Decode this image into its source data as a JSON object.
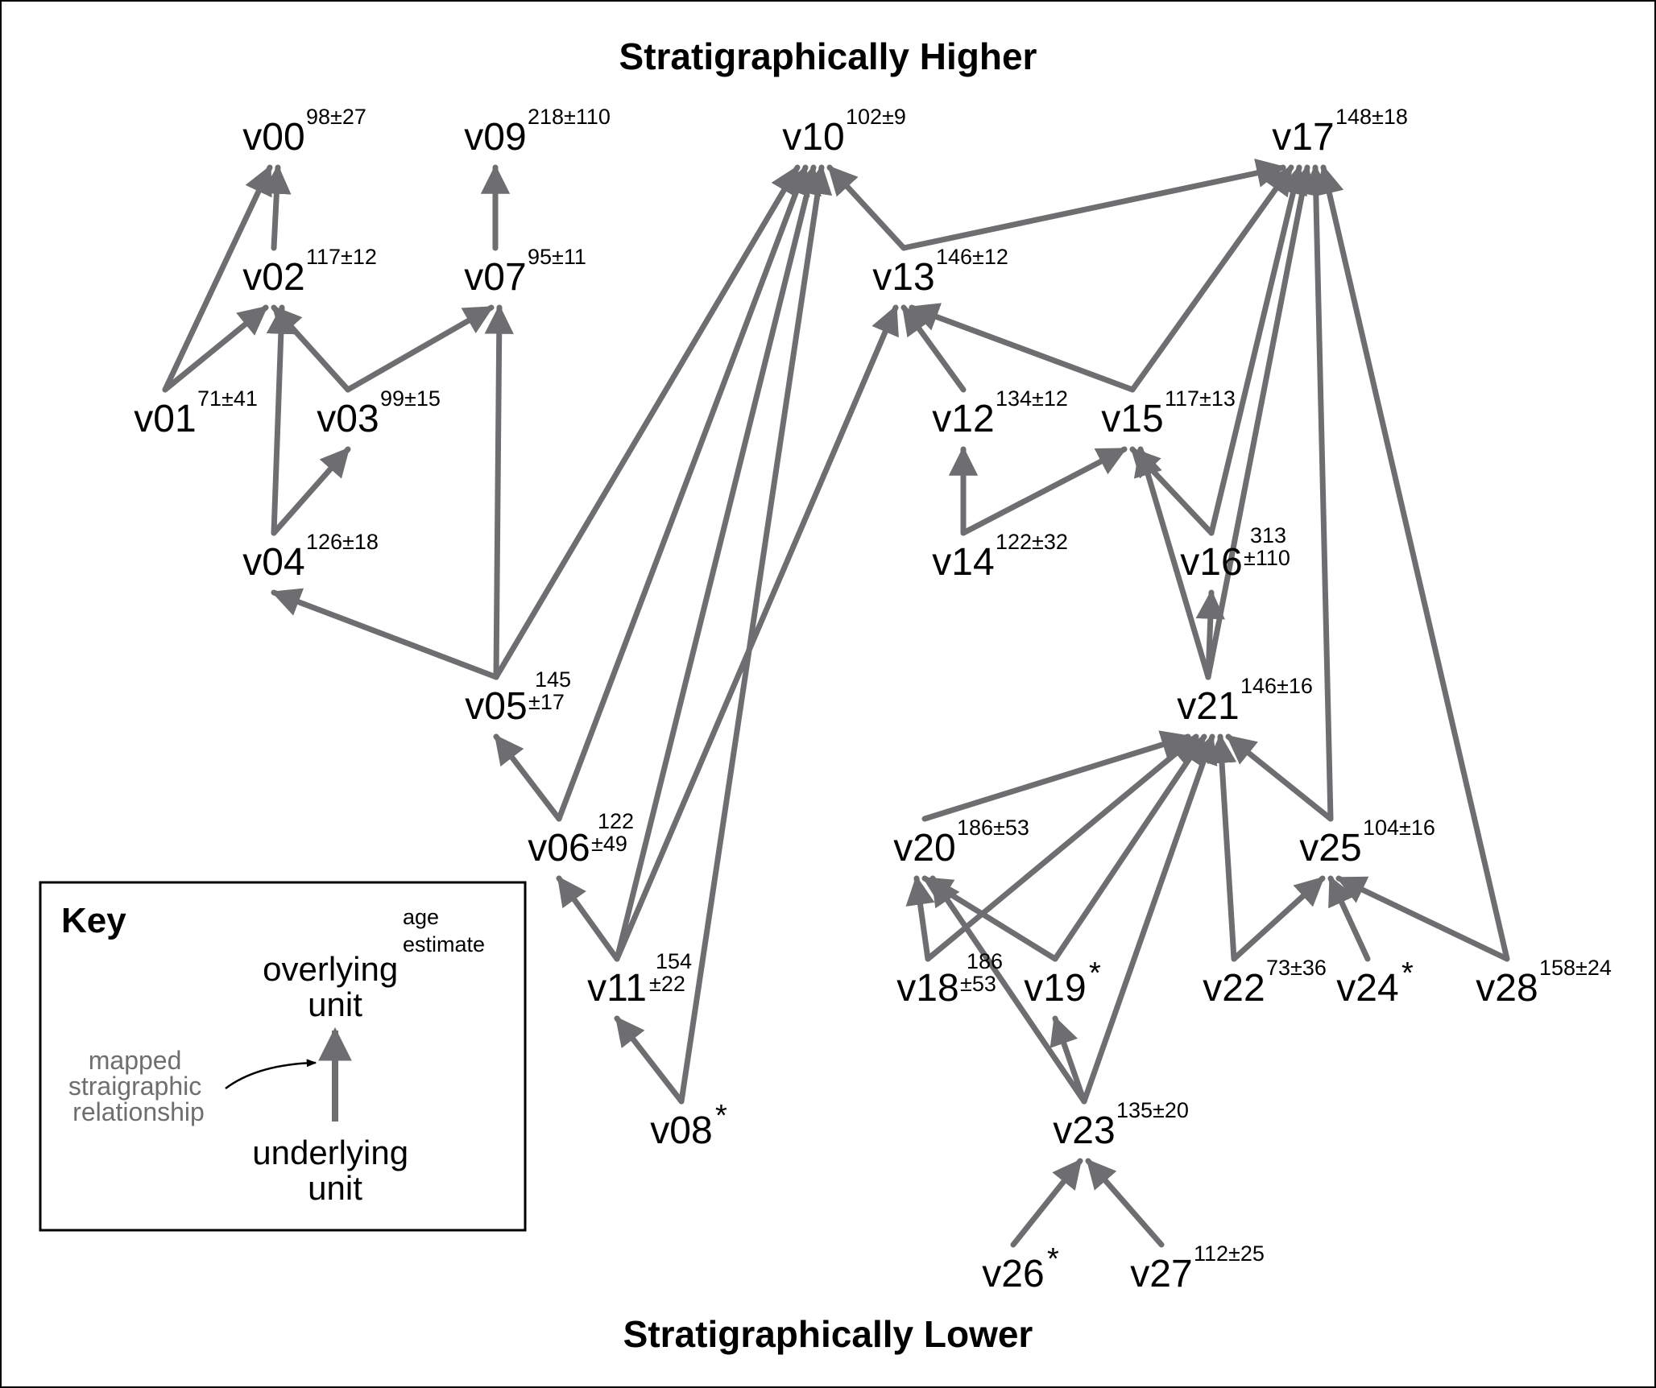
{
  "headings": {
    "top": "Stratigraphically Higher",
    "bottom": "Stratigraphically Lower"
  },
  "colors": {
    "arrow": "#6e6e70",
    "text": "#000000",
    "frame": "#000000"
  },
  "nodes": [
    {
      "id": "v00",
      "label": "v00",
      "age": [
        "98±27"
      ]
    },
    {
      "id": "v09",
      "label": "v09",
      "age": [
        "218±110"
      ]
    },
    {
      "id": "v10",
      "label": "v10",
      "age": [
        "102±9"
      ]
    },
    {
      "id": "v17",
      "label": "v17",
      "age": [
        "148±18"
      ]
    },
    {
      "id": "v02",
      "label": "v02",
      "age": [
        "117±12"
      ]
    },
    {
      "id": "v07",
      "label": "v07",
      "age": [
        "95±11"
      ]
    },
    {
      "id": "v13",
      "label": "v13",
      "age": [
        "146±12"
      ]
    },
    {
      "id": "v01",
      "label": "v01",
      "age": [
        "71±41"
      ]
    },
    {
      "id": "v03",
      "label": "v03",
      "age": [
        "99±15"
      ]
    },
    {
      "id": "v12",
      "label": "v12",
      "age": [
        "134±12"
      ]
    },
    {
      "id": "v15",
      "label": "v15",
      "age": [
        "117±13"
      ]
    },
    {
      "id": "v04",
      "label": "v04",
      "age": [
        "126±18"
      ]
    },
    {
      "id": "v14",
      "label": "v14",
      "age": [
        "122±32"
      ]
    },
    {
      "id": "v16",
      "label": "v16",
      "age": [
        "313",
        "±110"
      ]
    },
    {
      "id": "v05",
      "label": "v05",
      "age": [
        "145",
        "±17"
      ]
    },
    {
      "id": "v21",
      "label": "v21",
      "age": [
        "146±16"
      ]
    },
    {
      "id": "v06",
      "label": "v06",
      "age": [
        "122",
        "±49"
      ]
    },
    {
      "id": "v20",
      "label": "v20",
      "age": [
        "186±53"
      ]
    },
    {
      "id": "v25",
      "label": "v25",
      "age": [
        "104±16"
      ]
    },
    {
      "id": "v11",
      "label": "v11",
      "age": [
        "154",
        "±22"
      ]
    },
    {
      "id": "v18",
      "label": "v18",
      "age": [
        "186",
        "±53"
      ]
    },
    {
      "id": "v19",
      "label": "v19",
      "age": [],
      "star": "*"
    },
    {
      "id": "v22",
      "label": "v22",
      "age": [
        "73±36"
      ]
    },
    {
      "id": "v24",
      "label": "v24",
      "age": [],
      "star": "*"
    },
    {
      "id": "v28",
      "label": "v28",
      "age": [
        "158±24"
      ]
    },
    {
      "id": "v08",
      "label": "v08",
      "age": [],
      "star": "*"
    },
    {
      "id": "v23",
      "label": "v23",
      "age": [
        "135±20"
      ]
    },
    {
      "id": "v26",
      "label": "v26",
      "age": [],
      "star": "*"
    },
    {
      "id": "v27",
      "label": "v27",
      "age": [
        "112±25"
      ]
    }
  ],
  "edges": [
    {
      "from": "v01",
      "to": "v00"
    },
    {
      "from": "v02",
      "to": "v00"
    },
    {
      "from": "v01",
      "to": "v02"
    },
    {
      "from": "v03",
      "to": "v02"
    },
    {
      "from": "v04",
      "to": "v02"
    },
    {
      "from": "v04",
      "to": "v03"
    },
    {
      "from": "v03",
      "to": "v07"
    },
    {
      "from": "v07",
      "to": "v09"
    },
    {
      "from": "v05",
      "to": "v07"
    },
    {
      "from": "v05",
      "to": "v04"
    },
    {
      "from": "v05",
      "to": "v10"
    },
    {
      "from": "v06",
      "to": "v05"
    },
    {
      "from": "v06",
      "to": "v10"
    },
    {
      "from": "v11",
      "to": "v06"
    },
    {
      "from": "v11",
      "to": "v10"
    },
    {
      "from": "v11",
      "to": "v13"
    },
    {
      "from": "v08",
      "to": "v11"
    },
    {
      "from": "v08",
      "to": "v10"
    },
    {
      "from": "v13",
      "to": "v10"
    },
    {
      "from": "v13",
      "to": "v17"
    },
    {
      "from": "v12",
      "to": "v13"
    },
    {
      "from": "v15",
      "to": "v13"
    },
    {
      "from": "v14",
      "to": "v12"
    },
    {
      "from": "v14",
      "to": "v15"
    },
    {
      "from": "v15",
      "to": "v17"
    },
    {
      "from": "v16",
      "to": "v15"
    },
    {
      "from": "v16",
      "to": "v17"
    },
    {
      "from": "v21",
      "to": "v15"
    },
    {
      "from": "v21",
      "to": "v16"
    },
    {
      "from": "v21",
      "to": "v17"
    },
    {
      "from": "v25",
      "to": "v17"
    },
    {
      "from": "v28",
      "to": "v17"
    },
    {
      "from": "v20",
      "to": "v21"
    },
    {
      "from": "v18",
      "to": "v21"
    },
    {
      "from": "v19",
      "to": "v21"
    },
    {
      "from": "v23",
      "to": "v21"
    },
    {
      "from": "v22",
      "to": "v21"
    },
    {
      "from": "v25",
      "to": "v21"
    },
    {
      "from": "v18",
      "to": "v20"
    },
    {
      "from": "v19",
      "to": "v20"
    },
    {
      "from": "v23",
      "to": "v20"
    },
    {
      "from": "v23",
      "to": "v19"
    },
    {
      "from": "v22",
      "to": "v25"
    },
    {
      "from": "v24",
      "to": "v25"
    },
    {
      "from": "v28",
      "to": "v25"
    },
    {
      "from": "v26",
      "to": "v23"
    },
    {
      "from": "v27",
      "to": "v23"
    }
  ],
  "key": {
    "title": "Key",
    "age_line1": "age",
    "age_line2": "estimate",
    "overlying_line1": "overlying",
    "overlying_line2": "unit",
    "relationship_line1": "mapped",
    "relationship_line2": "straigraphic",
    "relationship_line3": "relationship",
    "underlying_line1": "underlying",
    "underlying_line2": "unit"
  }
}
